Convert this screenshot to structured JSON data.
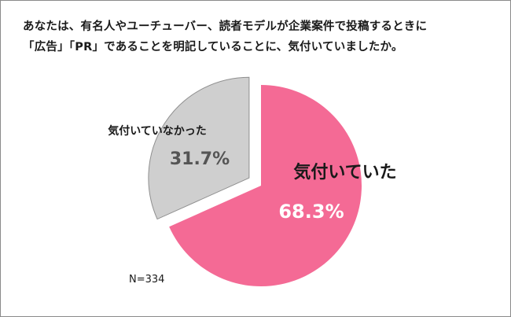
{
  "question": {
    "line1": "あなたは、有名人やユーチューバー、読者モデルが企業案件で投稿するときに",
    "line2": "「広告」「PR」であることを明記していることに、気付いていましたか。"
  },
  "sample_size": "N=334",
  "chart_data": {
    "type": "pie",
    "title": "あなたは、有名人やユーチューバー、読者モデルが企業案件で投稿するときに「広告」「PR」であることを明記していることに、気付いていましたか。",
    "slices": [
      {
        "label": "気付いていた",
        "value": 68.3,
        "value_label": "68.3%",
        "color": "#f46a95",
        "label_color": "#1a1a1a",
        "value_color": "#ffffff",
        "exploded": false
      },
      {
        "label": "気付いていなかった",
        "value": 31.7,
        "value_label": "31.7%",
        "color": "#cfcfcf",
        "label_color": "#1a1a1a",
        "value_color": "#555555",
        "exploded": true
      }
    ],
    "start": "12 o'clock, clockwise",
    "legend": "none",
    "n": "N=334"
  }
}
